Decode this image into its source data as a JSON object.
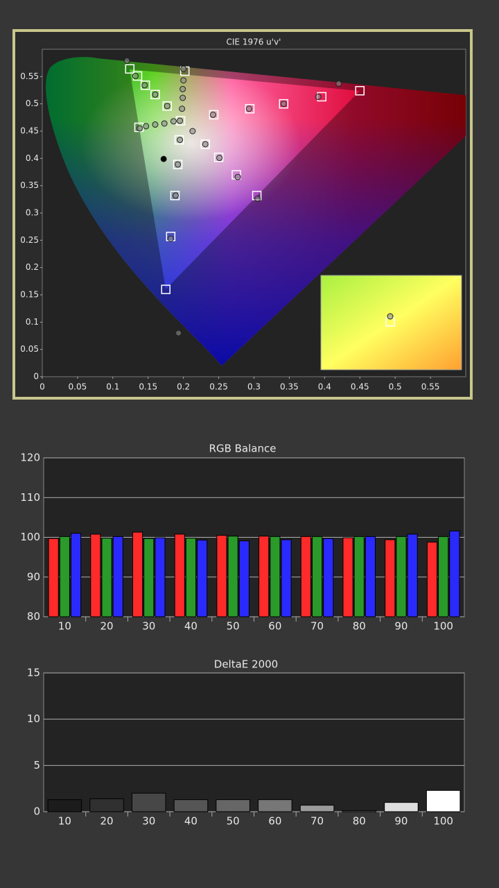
{
  "chart_data": [
    {
      "type": "scatter",
      "title": "CIE 1976 u'v'",
      "xlim": [
        0,
        0.6
      ],
      "ylim": [
        0,
        0.6
      ],
      "xticks": [
        0,
        0.05,
        0.1,
        0.15,
        0.2,
        0.25,
        0.3,
        0.35,
        0.4,
        0.45,
        0.5,
        0.55
      ],
      "yticks": [
        0,
        0.05,
        0.1,
        0.15,
        0.2,
        0.25,
        0.3,
        0.35,
        0.4,
        0.45,
        0.5,
        0.55
      ],
      "grid": false,
      "series": [
        {
          "marker": "square",
          "color": "#ffffff",
          "x": [
            0.124,
            0.135,
            0.146,
            0.16,
            0.177,
            0.196,
            0.243,
            0.294,
            0.342,
            0.396,
            0.45,
            0.194,
            0.192,
            0.188,
            0.182,
            0.175,
            0.137,
            0.231,
            0.25,
            0.275,
            0.304,
            0.202
          ],
          "values": [
            0.564,
            0.551,
            0.534,
            0.517,
            0.496,
            0.469,
            0.48,
            0.491,
            0.5,
            0.513,
            0.524,
            0.434,
            0.389,
            0.332,
            0.257,
            0.16,
            0.457,
            0.426,
            0.402,
            0.37,
            0.332,
            0.56
          ]
        },
        {
          "marker": "circle",
          "color": "#8a8a8a",
          "x": [
            0.12,
            0.132,
            0.145,
            0.16,
            0.177,
            0.195,
            0.186,
            0.173,
            0.16,
            0.147,
            0.138,
            0.213,
            0.195,
            0.192,
            0.189,
            0.182,
            0.193,
            0.231,
            0.251,
            0.277,
            0.305,
            0.242,
            0.293,
            0.342,
            0.391,
            0.42,
            0.2,
            0.2,
            0.199,
            0.199,
            0.198
          ],
          "values": [
            0.579,
            0.551,
            0.534,
            0.517,
            0.496,
            0.469,
            0.468,
            0.464,
            0.462,
            0.459,
            0.455,
            0.45,
            0.434,
            0.389,
            0.332,
            0.253,
            0.08,
            0.426,
            0.401,
            0.366,
            0.326,
            0.48,
            0.491,
            0.5,
            0.513,
            0.537,
            0.564,
            0.543,
            0.527,
            0.511,
            0.491
          ]
        },
        {
          "marker": "circle",
          "color": "#000000",
          "x": [
            0.172
          ],
          "values": [
            0.399
          ]
        }
      ]
    },
    {
      "type": "bar",
      "title": "RGB Balance",
      "categories": [
        "10",
        "20",
        "30",
        "40",
        "50",
        "60",
        "70",
        "80",
        "90",
        "100"
      ],
      "ylim": [
        80,
        120
      ],
      "yticks": [
        80,
        90,
        100,
        110,
        120
      ],
      "grid": true,
      "series": [
        {
          "color": "#ff2a2a",
          "values": [
            99.7,
            100.8,
            101.3,
            100.8,
            100.5,
            100.3,
            100.2,
            99.9,
            99.4,
            98.8
          ]
        },
        {
          "color": "#2a9a2a",
          "values": [
            100.2,
            99.8,
            99.7,
            99.8,
            100.3,
            100.2,
            100.2,
            100.2,
            100.2,
            100.2
          ]
        },
        {
          "color": "#2a2aff",
          "values": [
            101.0,
            100.2,
            99.9,
            99.3,
            99.1,
            99.4,
            99.7,
            100.2,
            100.8,
            101.6
          ]
        }
      ]
    },
    {
      "type": "bar",
      "title": "DeltaE 2000",
      "categories": [
        "10",
        "20",
        "30",
        "40",
        "50",
        "60",
        "70",
        "80",
        "90",
        "100"
      ],
      "ylim": [
        0,
        15
      ],
      "yticks": [
        0,
        5,
        10,
        15
      ],
      "grid": true,
      "values": [
        1.3,
        1.4,
        2.0,
        1.3,
        1.3,
        1.3,
        0.7,
        0.1,
        1.0,
        2.3
      ],
      "colors": [
        "#1c1c1c",
        "#303030",
        "#474747",
        "#555555",
        "#666666",
        "#777777",
        "#9a9a9a",
        "#aaaaaa",
        "#dddddd",
        "#ffffff"
      ]
    }
  ]
}
